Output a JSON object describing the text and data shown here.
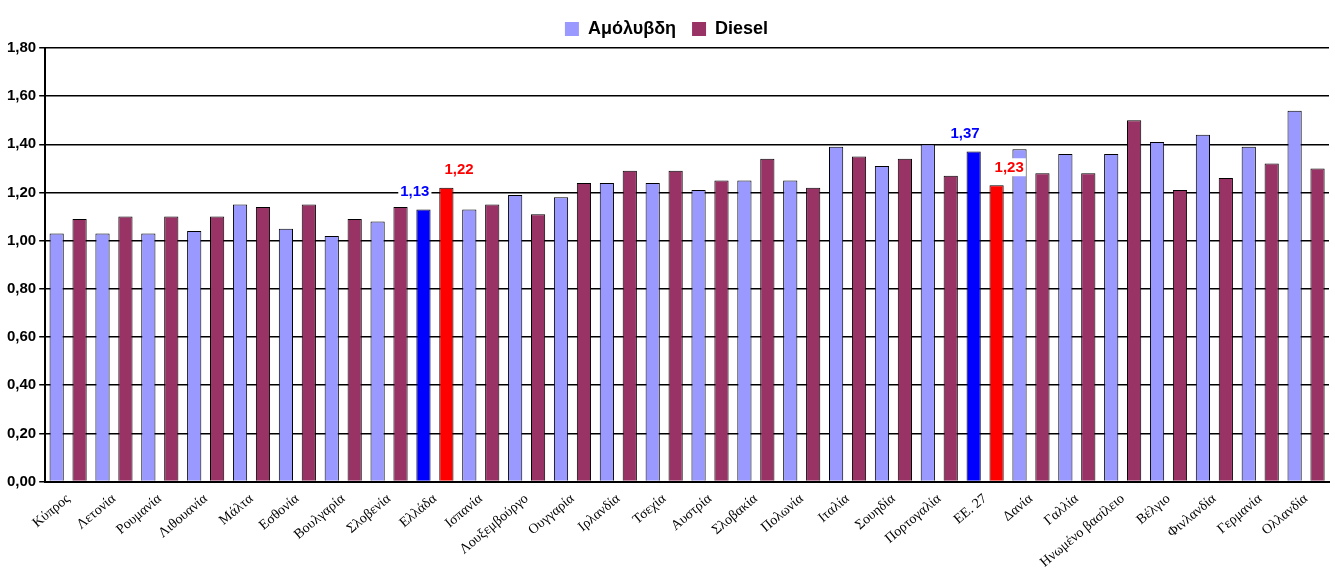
{
  "chart_data": {
    "type": "bar",
    "categories": [
      "Κύπρος",
      "Λετονία",
      "Ρουμανία",
      "Λιθουανία",
      "Μάλτα",
      "Εσθονία",
      "Βουλγαρία",
      "Σλοβενία",
      "Ελλάδα",
      "Ισπανία",
      "Λουξεμβούργο",
      "Ουγγαρία",
      "Ιρλανδία",
      "Τσεχία",
      "Αυστρία",
      "Σλοβακία",
      "Πολωνία",
      "Ιταλία",
      "Σουηδία",
      "Πορτογαλία",
      "ΕΕ. 27",
      "Δανία",
      "Γαλλία",
      "Ηνωμένο βασίλειο",
      "Βέλγιο",
      "Φινλανδία",
      "Γερμανία",
      "Ολλανδία"
    ],
    "series": [
      {
        "name": "Αμόλυβδη",
        "color": "#9999ff",
        "colors": [
          "#9999ff",
          "#9999ff",
          "#9999ff",
          "#9999ff",
          "#9999ff",
          "#9999ff",
          "#9999ff",
          "#9999ff",
          "#0000ff",
          "#9999ff",
          "#9999ff",
          "#9999ff",
          "#9999ff",
          "#9999ff",
          "#9999ff",
          "#9999ff",
          "#9999ff",
          "#9999ff",
          "#9999ff",
          "#9999ff",
          "#0000ff",
          "#9999ff",
          "#9999ff",
          "#9999ff",
          "#9999ff",
          "#9999ff",
          "#9999ff",
          "#9999ff"
        ],
        "values": [
          1.03,
          1.03,
          1.03,
          1.04,
          1.15,
          1.05,
          1.02,
          1.08,
          1.13,
          1.13,
          1.19,
          1.18,
          1.24,
          1.24,
          1.21,
          1.25,
          1.25,
          1.39,
          1.31,
          1.4,
          1.37,
          1.38,
          1.36,
          1.36,
          1.41,
          1.44,
          1.39,
          1.54
        ],
        "value_labels": [
          null,
          null,
          null,
          null,
          null,
          null,
          null,
          null,
          "1,13",
          null,
          null,
          null,
          null,
          null,
          null,
          null,
          null,
          null,
          null,
          null,
          "1,37",
          null,
          null,
          null,
          null,
          null,
          null,
          null
        ]
      },
      {
        "name": "Diesel",
        "color": "#993366",
        "colors": [
          "#993366",
          "#993366",
          "#993366",
          "#993366",
          "#993366",
          "#993366",
          "#993366",
          "#993366",
          "#ff0000",
          "#993366",
          "#993366",
          "#993366",
          "#993366",
          "#993366",
          "#993366",
          "#993366",
          "#993366",
          "#993366",
          "#993366",
          "#993366",
          "#ff0000",
          "#993366",
          "#993366",
          "#993366",
          "#993366",
          "#993366",
          "#993366",
          "#993366"
        ],
        "values": [
          1.09,
          1.1,
          1.1,
          1.1,
          1.14,
          1.15,
          1.09,
          1.14,
          1.22,
          1.15,
          1.11,
          1.24,
          1.29,
          1.29,
          1.25,
          1.34,
          1.22,
          1.35,
          1.34,
          1.27,
          1.23,
          1.28,
          1.28,
          1.5,
          1.21,
          1.26,
          1.32,
          1.3
        ],
        "value_labels": [
          null,
          null,
          null,
          null,
          null,
          null,
          null,
          null,
          "1,22",
          null,
          null,
          null,
          null,
          null,
          null,
          null,
          null,
          null,
          null,
          null,
          "1,23",
          null,
          null,
          null,
          null,
          null,
          null,
          null
        ]
      }
    ],
    "ylim": [
      0,
      1.8
    ],
    "yticks": [
      {
        "value": 0,
        "label": "0,00"
      },
      {
        "value": 0.2,
        "label": "0,20"
      },
      {
        "value": 0.4,
        "label": "0,40"
      },
      {
        "value": 0.6,
        "label": "0,60"
      },
      {
        "value": 0.8,
        "label": "0,80"
      },
      {
        "value": 1,
        "label": "1,00"
      },
      {
        "value": 1.2,
        "label": "1,20"
      },
      {
        "value": 1.4,
        "label": "1,40"
      },
      {
        "value": 1.6,
        "label": "1,60"
      },
      {
        "value": 1.8,
        "label": "1,80"
      }
    ],
    "grid": "y",
    "legend": "top"
  }
}
